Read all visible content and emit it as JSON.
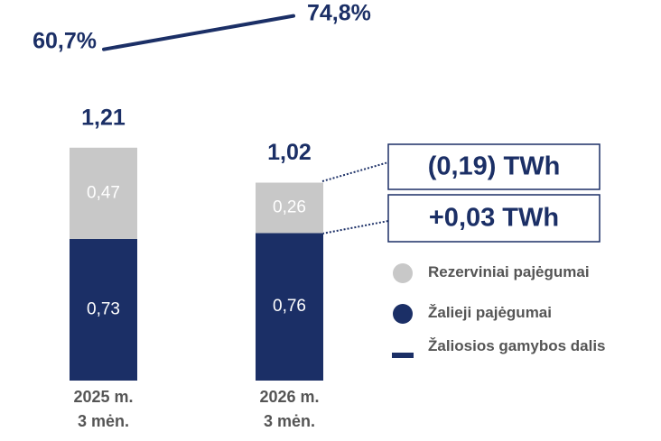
{
  "chart_data": {
    "type": "bar",
    "categories": [
      [
        "2025 m.",
        "3 mėn."
      ],
      [
        "2026 m.",
        "3 mėn."
      ]
    ],
    "stacked": true,
    "ylim": [
      0,
      1.25
    ],
    "y2lim": [
      40,
      80
    ],
    "series": [
      {
        "name": "Žalieji pajėgumai",
        "color": "#1b2f66",
        "values": [
          0.73,
          0.76
        ],
        "value_labels": [
          "0,73",
          "0,76"
        ]
      },
      {
        "name": "Rezerviniai pajėgumai",
        "color": "#c8c8c8",
        "values": [
          0.47,
          0.26
        ],
        "value_labels": [
          "0,47",
          "0,26"
        ]
      },
      {
        "name": "Žaliosios gamybos dalis",
        "type": "line",
        "axis": "y2",
        "color": "#1b2f66",
        "values": [
          60.7,
          74.8
        ],
        "value_labels": [
          "60,7%",
          "74,8%"
        ]
      }
    ],
    "totals": [
      1.21,
      1.02
    ],
    "total_labels": [
      "1,21",
      "1,02"
    ],
    "annotations": [
      "(0,19) TWh",
      "+0,03 TWh"
    ]
  }
}
